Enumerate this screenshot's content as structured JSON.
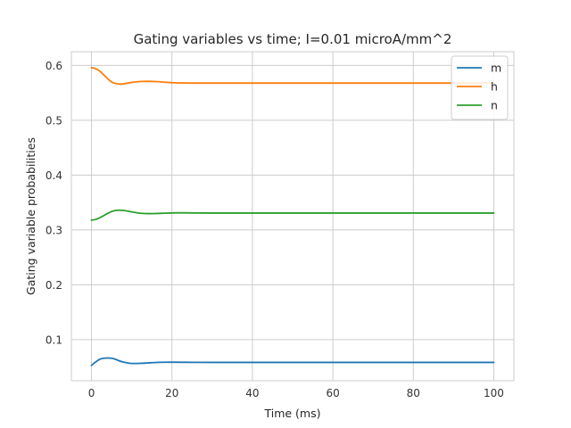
{
  "chart_data": {
    "type": "line",
    "title": "Gating variables vs time; I=0.01 microA/mm^2",
    "xlabel": "Time (ms)",
    "ylabel": "Gating variable probabilities",
    "xlim": [
      -5,
      105
    ],
    "ylim": [
      0.025,
      0.625
    ],
    "xticks": [
      0,
      20,
      40,
      60,
      80,
      100
    ],
    "yticks": [
      0.1,
      0.2,
      0.3,
      0.4,
      0.5,
      0.6
    ],
    "xtick_labels": [
      "0",
      "20",
      "40",
      "60",
      "80",
      "100"
    ],
    "ytick_labels": [
      "0.1",
      "0.2",
      "0.3",
      "0.4",
      "0.5",
      "0.6"
    ],
    "grid": true,
    "legend_position": "top-right",
    "series": [
      {
        "name": "m",
        "color": "#1f77b4",
        "x": [
          0,
          1,
          2,
          3,
          4,
          5,
          6,
          7,
          8,
          9,
          10,
          12,
          14,
          16,
          18,
          20,
          25,
          30,
          40,
          60,
          80,
          100
        ],
        "y": [
          0.053,
          0.059,
          0.064,
          0.066,
          0.0665,
          0.066,
          0.064,
          0.061,
          0.059,
          0.0575,
          0.0565,
          0.0567,
          0.0575,
          0.0583,
          0.0587,
          0.0588,
          0.0586,
          0.0584,
          0.0584,
          0.0584,
          0.0584,
          0.0584
        ]
      },
      {
        "name": "h",
        "color": "#ff7f0e",
        "x": [
          0,
          1,
          2,
          3,
          4,
          5,
          6,
          7,
          8,
          10,
          12,
          14,
          16,
          18,
          20,
          22,
          25,
          30,
          40,
          60,
          80,
          100
        ],
        "y": [
          0.596,
          0.594,
          0.59,
          0.583,
          0.576,
          0.57,
          0.567,
          0.566,
          0.5665,
          0.569,
          0.5705,
          0.571,
          0.5705,
          0.5695,
          0.5685,
          0.568,
          0.5678,
          0.5678,
          0.5678,
          0.5678,
          0.5678,
          0.5678
        ]
      },
      {
        "name": "n",
        "color": "#2ca02c",
        "x": [
          0,
          1,
          2,
          3,
          4,
          5,
          6,
          7,
          8,
          10,
          12,
          14,
          16,
          18,
          20,
          22,
          25,
          30,
          40,
          60,
          80,
          100
        ],
        "y": [
          0.318,
          0.319,
          0.322,
          0.326,
          0.33,
          0.3335,
          0.3355,
          0.336,
          0.3355,
          0.333,
          0.3305,
          0.3298,
          0.33,
          0.3305,
          0.331,
          0.3312,
          0.331,
          0.3308,
          0.3308,
          0.3308,
          0.3308,
          0.3308
        ]
      }
    ]
  }
}
